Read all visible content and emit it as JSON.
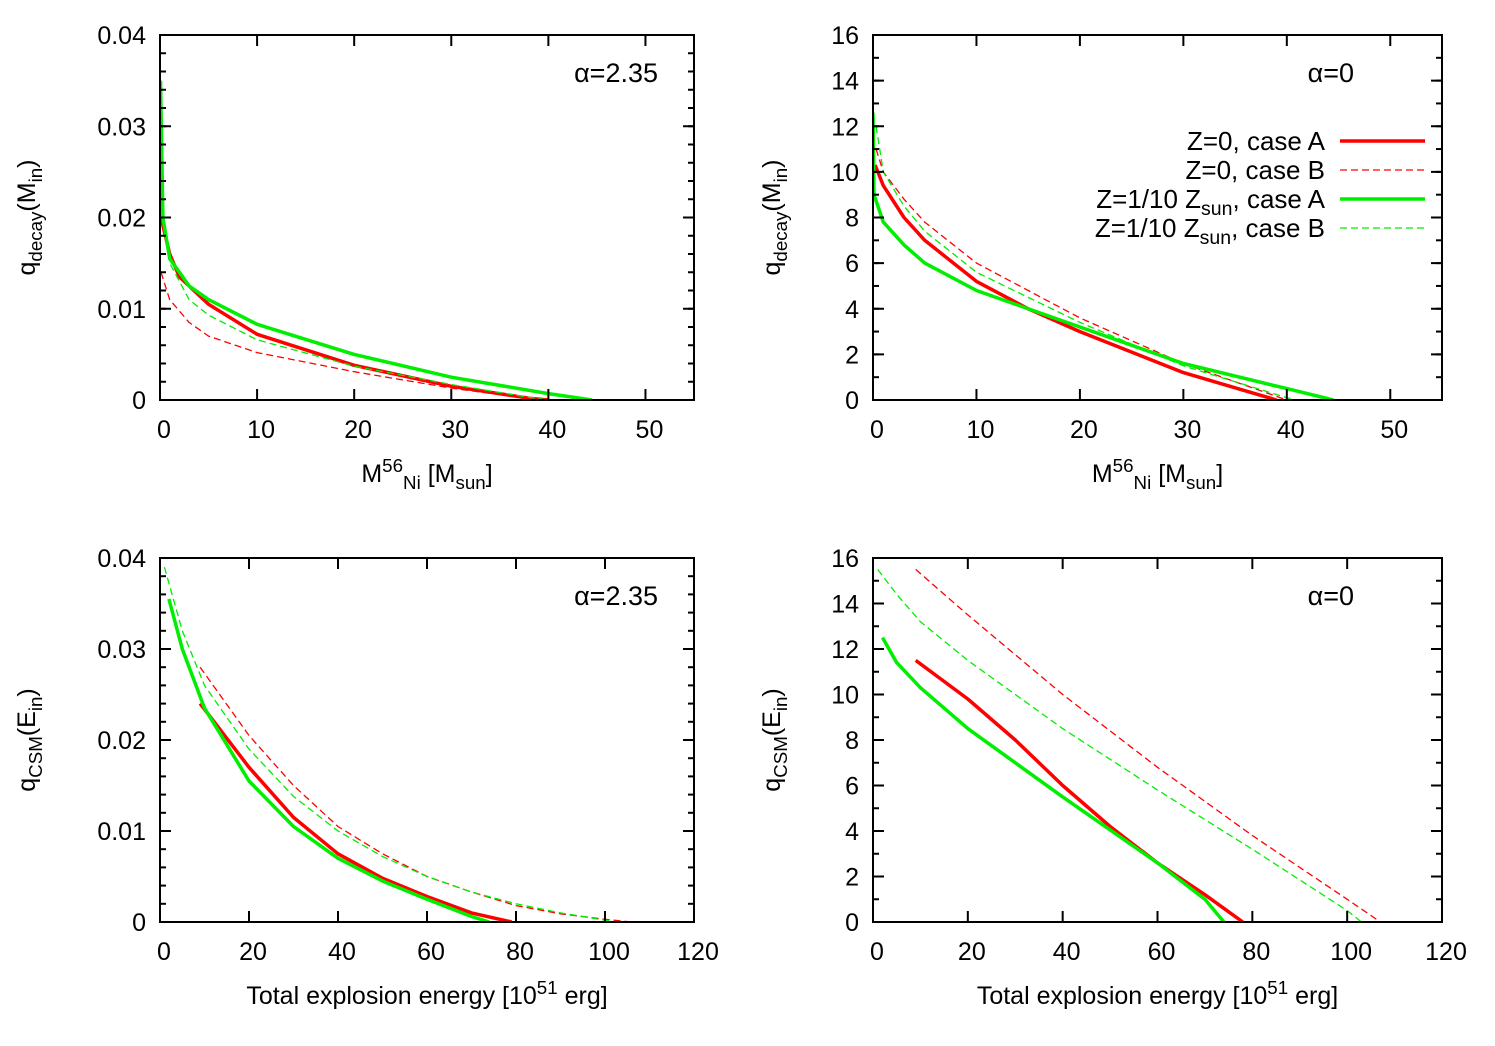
{
  "chart_data": [
    {
      "type": "line",
      "annotation": "α=2.35",
      "xlabel": [
        {
          "t": "M"
        },
        {
          "t": "56",
          "s": "sup"
        },
        {
          "t": "Ni",
          "s": "sub"
        },
        {
          "t": " [M"
        },
        {
          "t": "sun",
          "s": "sub"
        },
        {
          "t": "]"
        }
      ],
      "ylabel": [
        {
          "t": "q"
        },
        {
          "t": "decay",
          "s": "sub"
        },
        {
          "t": "(M"
        },
        {
          "t": "in",
          "s": "sub"
        },
        {
          "t": ")"
        }
      ],
      "xlim": [
        0,
        55
      ],
      "ylim": [
        0,
        0.04
      ],
      "xticks": [
        0,
        10,
        20,
        30,
        40,
        50
      ],
      "xtick_labels": [
        "0",
        "10",
        "20",
        "30",
        "40",
        "50"
      ],
      "yticks": [
        0,
        0.01,
        0.02,
        0.03,
        0.04
      ],
      "ytick_labels": [
        "0",
        "0.01",
        "0.02",
        "0.03",
        "0.04"
      ],
      "yminor": 0.002,
      "legend": false,
      "series": [
        {
          "name": "Z=0, case A",
          "color": "#ff0000",
          "style": "solid",
          "x": [
            0.1,
            1,
            2,
            5,
            10,
            20,
            30,
            38,
            40
          ],
          "y": [
            0.02,
            0.016,
            0.0135,
            0.0105,
            0.0072,
            0.0038,
            0.0015,
            0.0002,
            0
          ]
        },
        {
          "name": "Z=0, case B",
          "color": "#ff0000",
          "style": "dashed",
          "x": [
            0.1,
            1,
            3,
            5,
            10,
            20,
            30,
            37,
            40
          ],
          "y": [
            0.014,
            0.011,
            0.0085,
            0.007,
            0.0052,
            0.0031,
            0.0013,
            0.0003,
            0
          ]
        },
        {
          "name": "Z=1/10 Zsun, case A",
          "color": "#00ee00",
          "style": "solid",
          "x": [
            0.05,
            0.3,
            1,
            3,
            5,
            10,
            20,
            30,
            40,
            44.5
          ],
          "y": [
            0.035,
            0.02,
            0.0155,
            0.0125,
            0.011,
            0.0083,
            0.005,
            0.0025,
            0.0007,
            0
          ]
        },
        {
          "name": "Z=1/10 Zsun, case B",
          "color": "#00ee00",
          "style": "dashed",
          "x": [
            0.1,
            0.5,
            1,
            3,
            5,
            10,
            20,
            30,
            38,
            40
          ],
          "y": [
            0.022,
            0.019,
            0.015,
            0.011,
            0.0093,
            0.0066,
            0.0037,
            0.0017,
            0.0003,
            0
          ]
        }
      ]
    },
    {
      "type": "line",
      "annotation": "α=0",
      "xlabel": [
        {
          "t": "M"
        },
        {
          "t": "56",
          "s": "sup"
        },
        {
          "t": "Ni",
          "s": "sub"
        },
        {
          "t": " [M"
        },
        {
          "t": "sun",
          "s": "sub"
        },
        {
          "t": "]"
        }
      ],
      "ylabel": [
        {
          "t": "q"
        },
        {
          "t": "decay",
          "s": "sub"
        },
        {
          "t": "(M"
        },
        {
          "t": "in",
          "s": "sub"
        },
        {
          "t": ")"
        }
      ],
      "xlim": [
        0,
        55
      ],
      "ylim": [
        0,
        16
      ],
      "xticks": [
        0,
        10,
        20,
        30,
        40,
        50
      ],
      "xtick_labels": [
        "0",
        "10",
        "20",
        "30",
        "40",
        "50"
      ],
      "yticks": [
        0,
        2,
        4,
        6,
        8,
        10,
        12,
        14,
        16
      ],
      "ytick_labels": [
        "0",
        "2",
        "4",
        "6",
        "8",
        "10",
        "12",
        "14",
        "16"
      ],
      "yminor": 1,
      "legend": true,
      "legend_position": "top-right",
      "legend_entries": [
        [
          {
            "t": "Z=0, case A"
          }
        ],
        [
          {
            "t": "Z=0, case B"
          }
        ],
        [
          {
            "t": "Z=1/10 Z"
          },
          {
            "t": "sun",
            "s": "sub"
          },
          {
            "t": ", case A"
          }
        ],
        [
          {
            "t": "Z=1/10 Z"
          },
          {
            "t": "sun",
            "s": "sub"
          },
          {
            "t": ", case B"
          }
        ]
      ],
      "series": [
        {
          "name": "Z=0, case A",
          "color": "#ff0000",
          "style": "solid",
          "x": [
            0.2,
            1,
            3,
            5,
            10,
            15,
            20,
            30,
            39
          ],
          "y": [
            10.3,
            9.4,
            8.0,
            7.0,
            5.2,
            4.0,
            3.0,
            1.2,
            0
          ]
        },
        {
          "name": "Z=0, case B",
          "color": "#ff0000",
          "style": "dashed",
          "x": [
            0.3,
            1,
            3,
            5,
            10,
            20,
            30,
            40
          ],
          "y": [
            11,
            10,
            8.8,
            7.8,
            6,
            3.6,
            1.6,
            0
          ]
        },
        {
          "name": "Z=1/10 Zsun, case A",
          "color": "#00ee00",
          "style": "solid",
          "x": [
            0,
            0.1,
            1,
            3,
            5,
            10,
            20,
            30,
            40,
            44.5
          ],
          "y": [
            12.6,
            9,
            7.8,
            6.8,
            6.0,
            4.8,
            3.2,
            1.6,
            0.5,
            0
          ]
        },
        {
          "name": "Z=1/10 Zsun, case B",
          "color": "#00ee00",
          "style": "dashed",
          "x": [
            0.3,
            1,
            3,
            5,
            10,
            20,
            30,
            40,
            41
          ],
          "y": [
            12,
            10,
            8.5,
            7.4,
            5.6,
            3.4,
            1.5,
            0.1,
            0
          ]
        }
      ]
    },
    {
      "type": "line",
      "annotation": "α=2.35",
      "xlabel": [
        {
          "t": "Total explosion energy [10"
        },
        {
          "t": "51",
          "s": "sup"
        },
        {
          "t": " erg]"
        }
      ],
      "ylabel": [
        {
          "t": "q"
        },
        {
          "t": "CSM",
          "s": "sub"
        },
        {
          "t": "(E"
        },
        {
          "t": "in",
          "s": "sub"
        },
        {
          "t": ")"
        }
      ],
      "xlim": [
        0,
        120
      ],
      "ylim": [
        0,
        0.04
      ],
      "xticks": [
        0,
        20,
        40,
        60,
        80,
        100,
        120
      ],
      "xtick_labels": [
        "0",
        "20",
        "40",
        "60",
        "80",
        "100",
        "120"
      ],
      "yticks": [
        0,
        0.01,
        0.02,
        0.03,
        0.04
      ],
      "ytick_labels": [
        "0",
        "0.01",
        "0.02",
        "0.03",
        "0.04"
      ],
      "yminor": 0.002,
      "legend": false,
      "series": [
        {
          "name": "Z=0, case A",
          "color": "#ff0000",
          "style": "solid",
          "x": [
            9,
            20,
            30,
            40,
            50,
            60,
            70,
            79
          ],
          "y": [
            0.024,
            0.017,
            0.0115,
            0.0075,
            0.0048,
            0.0028,
            0.001,
            0
          ]
        },
        {
          "name": "Z=0, case B",
          "color": "#ff0000",
          "style": "dashed",
          "x": [
            9,
            20,
            30,
            40,
            50,
            60,
            70,
            80,
            90,
            100,
            106
          ],
          "y": [
            0.028,
            0.0205,
            0.015,
            0.0105,
            0.0075,
            0.005,
            0.0033,
            0.0018,
            0.0009,
            0.0003,
            0
          ]
        },
        {
          "name": "Z=1/10 Zsun, case A",
          "color": "#00ee00",
          "style": "solid",
          "x": [
            2,
            5,
            10,
            20,
            30,
            40,
            50,
            60,
            70,
            74
          ],
          "y": [
            0.0355,
            0.03,
            0.0235,
            0.0155,
            0.0105,
            0.007,
            0.0045,
            0.0025,
            0.0006,
            0
          ]
        },
        {
          "name": "Z=1/10 Zsun, case B",
          "color": "#00ee00",
          "style": "dashed",
          "x": [
            1,
            5,
            10,
            20,
            30,
            40,
            50,
            60,
            70,
            80,
            90,
            100,
            103
          ],
          "y": [
            0.039,
            0.032,
            0.026,
            0.019,
            0.0138,
            0.01,
            0.0072,
            0.005,
            0.0033,
            0.002,
            0.001,
            0.0002,
            0
          ]
        }
      ]
    },
    {
      "type": "line",
      "annotation": "α=0",
      "xlabel": [
        {
          "t": "Total explosion energy [10"
        },
        {
          "t": "51",
          "s": "sup"
        },
        {
          "t": " erg]"
        }
      ],
      "ylabel": [
        {
          "t": "q"
        },
        {
          "t": "CSM",
          "s": "sub"
        },
        {
          "t": "(E"
        },
        {
          "t": "in",
          "s": "sub"
        },
        {
          "t": ")"
        }
      ],
      "xlim": [
        0,
        120
      ],
      "ylim": [
        0,
        16
      ],
      "xticks": [
        0,
        20,
        40,
        60,
        80,
        100,
        120
      ],
      "xtick_labels": [
        "0",
        "20",
        "40",
        "60",
        "80",
        "100",
        "120"
      ],
      "yticks": [
        0,
        2,
        4,
        6,
        8,
        10,
        12,
        14,
        16
      ],
      "ytick_labels": [
        "0",
        "2",
        "4",
        "6",
        "8",
        "10",
        "12",
        "14",
        "16"
      ],
      "yminor": 1,
      "legend": false,
      "series": [
        {
          "name": "Z=0, case A",
          "color": "#ff0000",
          "style": "solid",
          "x": [
            9,
            20,
            30,
            40,
            50,
            60,
            70,
            78
          ],
          "y": [
            11.5,
            9.8,
            8.0,
            6.0,
            4.2,
            2.6,
            1.2,
            0
          ]
        },
        {
          "name": "Z=0, case B",
          "color": "#ff0000",
          "style": "dashed",
          "x": [
            9,
            20,
            40,
            60,
            80,
            100,
            107
          ],
          "y": [
            15.5,
            13.5,
            10,
            6.8,
            3.8,
            1.0,
            0
          ]
        },
        {
          "name": "Z=1/10 Zsun, case A",
          "color": "#00ee00",
          "style": "solid",
          "x": [
            2,
            5,
            10,
            20,
            40,
            60,
            70,
            74
          ],
          "y": [
            12.5,
            11.4,
            10.3,
            8.5,
            5.5,
            2.6,
            1.0,
            0
          ]
        },
        {
          "name": "Z=1/10 Zsun, case B",
          "color": "#00ee00",
          "style": "dashed",
          "x": [
            1,
            5,
            10,
            20,
            40,
            60,
            80,
            100,
            103
          ],
          "y": [
            15.5,
            14.4,
            13.2,
            11.5,
            8.5,
            5.8,
            3.2,
            0.5,
            0
          ]
        }
      ]
    }
  ]
}
